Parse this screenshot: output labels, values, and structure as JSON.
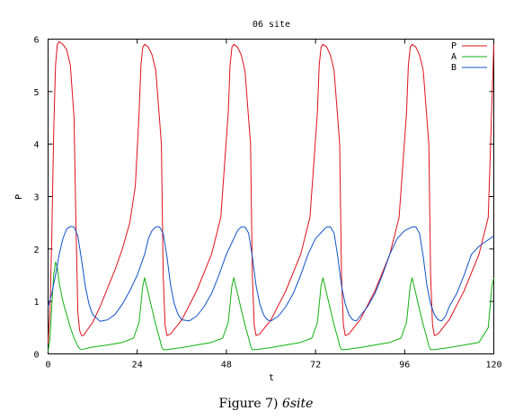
{
  "chart_data": {
    "type": "line",
    "title": "06 site",
    "xlabel": "t",
    "ylabel": "P",
    "xlim": [
      0,
      120
    ],
    "ylim": [
      0,
      6
    ],
    "xticks": [
      "0",
      "24",
      "48",
      "72",
      "96",
      "120"
    ],
    "yticks": [
      "0",
      "1",
      "2",
      "3",
      "4",
      "5",
      "6"
    ],
    "legend_position": "top-right",
    "grid": false,
    "series": [
      {
        "name": "P",
        "color": "#e0101a",
        "x": [
          0,
          0.5,
          1,
          1.5,
          2,
          2.5,
          3,
          4,
          5,
          6,
          7,
          7.5,
          8,
          8.5,
          9,
          9.5,
          10,
          12,
          14,
          16,
          18,
          20,
          22,
          23.5,
          24.5,
          25,
          25.5,
          26,
          27,
          28,
          29,
          30.5,
          31,
          31.5,
          32,
          33,
          36,
          40,
          44,
          46.5,
          48.5,
          49,
          49.5,
          50,
          51,
          52,
          53,
          54.5,
          55,
          55.5,
          56,
          57,
          60,
          64,
          68,
          70.5,
          72.5,
          73,
          73.5,
          74,
          75,
          76,
          77,
          78.5,
          79,
          79.5,
          80,
          81,
          84,
          88,
          92,
          94.5,
          96.5,
          97,
          97.5,
          98,
          99,
          100,
          101,
          102.5,
          103,
          103.5,
          104,
          105,
          108,
          112,
          116,
          118.5,
          120
        ],
        "y": [
          0.2,
          0.8,
          2.2,
          4.2,
          5.5,
          5.9,
          5.95,
          5.9,
          5.8,
          5.5,
          4.5,
          2.5,
          0.8,
          0.45,
          0.35,
          0.35,
          0.4,
          0.6,
          0.9,
          1.25,
          1.6,
          2.0,
          2.5,
          3.2,
          4.6,
          5.5,
          5.85,
          5.9,
          5.85,
          5.7,
          5.4,
          4.0,
          1.5,
          0.55,
          0.35,
          0.38,
          0.65,
          1.2,
          1.9,
          2.6,
          4.6,
          5.5,
          5.85,
          5.9,
          5.85,
          5.7,
          5.4,
          4.0,
          1.5,
          0.55,
          0.35,
          0.38,
          0.65,
          1.2,
          1.9,
          2.6,
          4.6,
          5.5,
          5.85,
          5.9,
          5.85,
          5.7,
          5.4,
          4.0,
          1.5,
          0.55,
          0.35,
          0.38,
          0.65,
          1.2,
          1.9,
          2.6,
          4.6,
          5.5,
          5.85,
          5.9,
          5.85,
          5.7,
          5.4,
          4.0,
          1.5,
          0.55,
          0.35,
          0.38,
          0.65,
          1.2,
          1.9,
          2.6,
          5.9
        ]
      },
      {
        "name": "A",
        "color": "#10b010",
        "x": [
          0,
          0.5,
          1,
          1.5,
          2,
          2.5,
          3,
          4,
          5,
          6,
          7,
          8,
          8.5,
          9,
          10,
          12,
          16,
          20,
          23,
          24.5,
          25.5,
          26,
          27,
          28,
          29,
          30,
          30.5,
          31,
          32,
          36,
          40,
          44,
          47,
          48.5,
          49.5,
          50,
          51,
          52,
          53,
          54,
          54.5,
          55,
          56,
          60,
          64,
          68,
          71,
          72.5,
          73.5,
          74,
          75,
          76,
          77,
          78,
          78.5,
          79,
          80,
          84,
          88,
          92,
          95,
          96.5,
          97.5,
          98,
          99,
          100,
          101,
          102,
          102.5,
          103,
          104,
          108,
          112,
          116,
          118.5,
          119.5,
          120
        ],
        "y": [
          0.05,
          0.3,
          0.9,
          1.5,
          1.75,
          1.65,
          1.35,
          1.0,
          0.75,
          0.5,
          0.3,
          0.15,
          0.1,
          0.08,
          0.1,
          0.13,
          0.17,
          0.22,
          0.3,
          0.6,
          1.3,
          1.45,
          1.15,
          0.85,
          0.55,
          0.3,
          0.15,
          0.08,
          0.08,
          0.12,
          0.17,
          0.22,
          0.3,
          0.6,
          1.3,
          1.45,
          1.15,
          0.85,
          0.55,
          0.3,
          0.15,
          0.08,
          0.08,
          0.12,
          0.17,
          0.22,
          0.3,
          0.6,
          1.3,
          1.45,
          1.15,
          0.85,
          0.55,
          0.3,
          0.15,
          0.08,
          0.08,
          0.12,
          0.17,
          0.22,
          0.3,
          0.6,
          1.3,
          1.45,
          1.15,
          0.85,
          0.55,
          0.3,
          0.15,
          0.08,
          0.08,
          0.12,
          0.17,
          0.22,
          0.5,
          1.3,
          1.45
        ]
      },
      {
        "name": "B",
        "color": "#1050c8",
        "x": [
          0,
          1,
          2,
          3,
          4,
          5,
          6,
          7,
          8,
          9,
          10,
          11,
          12,
          14,
          16,
          18,
          20,
          22,
          24,
          26,
          27,
          28,
          29,
          30,
          31,
          32,
          33,
          34,
          35,
          36,
          38,
          40,
          42,
          44,
          46,
          48,
          50,
          51,
          52,
          53,
          54,
          55,
          56,
          57,
          58,
          59,
          60,
          62,
          64,
          66,
          68,
          70,
          72,
          74,
          75,
          76,
          77,
          78,
          79,
          80,
          81,
          82,
          83,
          84,
          86,
          88,
          90,
          92,
          94,
          96,
          98,
          99,
          100,
          101,
          102,
          103,
          104,
          105,
          106,
          107,
          108,
          110,
          112,
          114,
          116,
          118,
          120
        ],
        "y": [
          0.9,
          1.15,
          1.5,
          1.9,
          2.2,
          2.38,
          2.43,
          2.42,
          2.25,
          1.8,
          1.3,
          0.95,
          0.75,
          0.62,
          0.65,
          0.75,
          0.95,
          1.2,
          1.5,
          1.9,
          2.2,
          2.35,
          2.42,
          2.42,
          2.3,
          1.85,
          1.3,
          0.95,
          0.75,
          0.65,
          0.63,
          0.72,
          0.9,
          1.15,
          1.5,
          1.9,
          2.2,
          2.35,
          2.42,
          2.42,
          2.3,
          1.85,
          1.3,
          0.95,
          0.75,
          0.65,
          0.63,
          0.72,
          0.9,
          1.15,
          1.5,
          1.9,
          2.2,
          2.35,
          2.42,
          2.42,
          2.3,
          1.85,
          1.3,
          0.95,
          0.75,
          0.65,
          0.63,
          0.72,
          0.9,
          1.15,
          1.5,
          1.9,
          2.2,
          2.35,
          2.42,
          2.42,
          2.3,
          1.85,
          1.3,
          0.95,
          0.75,
          0.65,
          0.63,
          0.72,
          0.9,
          1.15,
          1.5,
          1.9,
          2.05,
          2.15,
          2.25
        ]
      }
    ]
  },
  "caption": {
    "prefix": "Figure 7) ",
    "emphasis": "6site"
  }
}
